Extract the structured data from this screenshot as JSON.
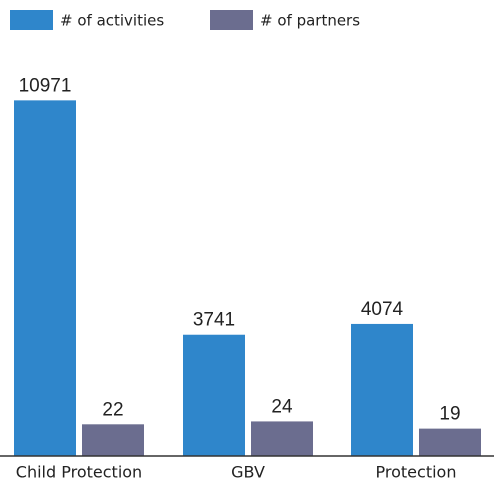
{
  "chart_data": {
    "type": "bar",
    "categories": [
      "Child Protection",
      "GBV",
      "Protection"
    ],
    "series": [
      {
        "name": "# of activities",
        "color": "#2f86cb",
        "values": [
          10971,
          3741,
          4074
        ]
      },
      {
        "name": "# of partners",
        "color": "#6b6d8f",
        "values": [
          22,
          24,
          19
        ],
        "axis": "y2"
      }
    ],
    "ylim": [
      0,
      12000
    ],
    "y2lim": [
      0,
      270
    ]
  }
}
